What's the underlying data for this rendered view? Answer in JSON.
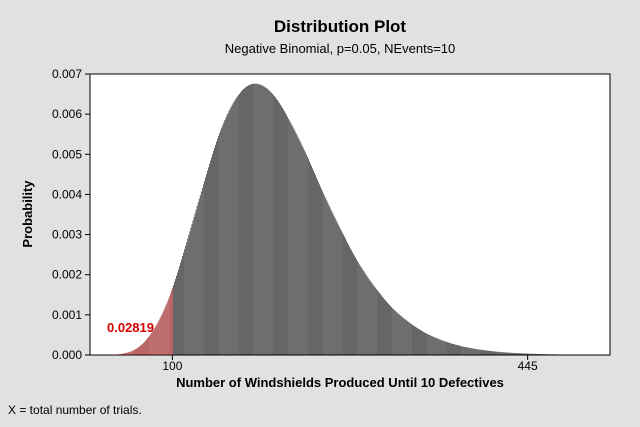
{
  "chart_data": {
    "type": "bar",
    "title": "Distribution Plot",
    "subtitle": "Negative Binomial, p=0.05, NEvents=10",
    "xlabel": "Number of Windshields Produced Until 10 Defectives",
    "ylabel": "Probability",
    "distribution": {
      "family": "negative-binomial",
      "p": 0.05,
      "events": 10
    },
    "xlim": [
      20,
      525
    ],
    "ylim": [
      0,
      0.007
    ],
    "y_ticks": [
      "0.000",
      "0.001",
      "0.002",
      "0.003",
      "0.004",
      "0.005",
      "0.006",
      "0.007"
    ],
    "x_ticks": [
      "100",
      "445"
    ],
    "x_tick_values": [
      100,
      445
    ],
    "shaded_region": {
      "to_x": 100,
      "probability_label": "0.02819",
      "color": "#8b0000"
    },
    "bar_color": "#000000",
    "plot_background": "#ffffff",
    "grid": false,
    "footnote": "X = total number of trials."
  }
}
